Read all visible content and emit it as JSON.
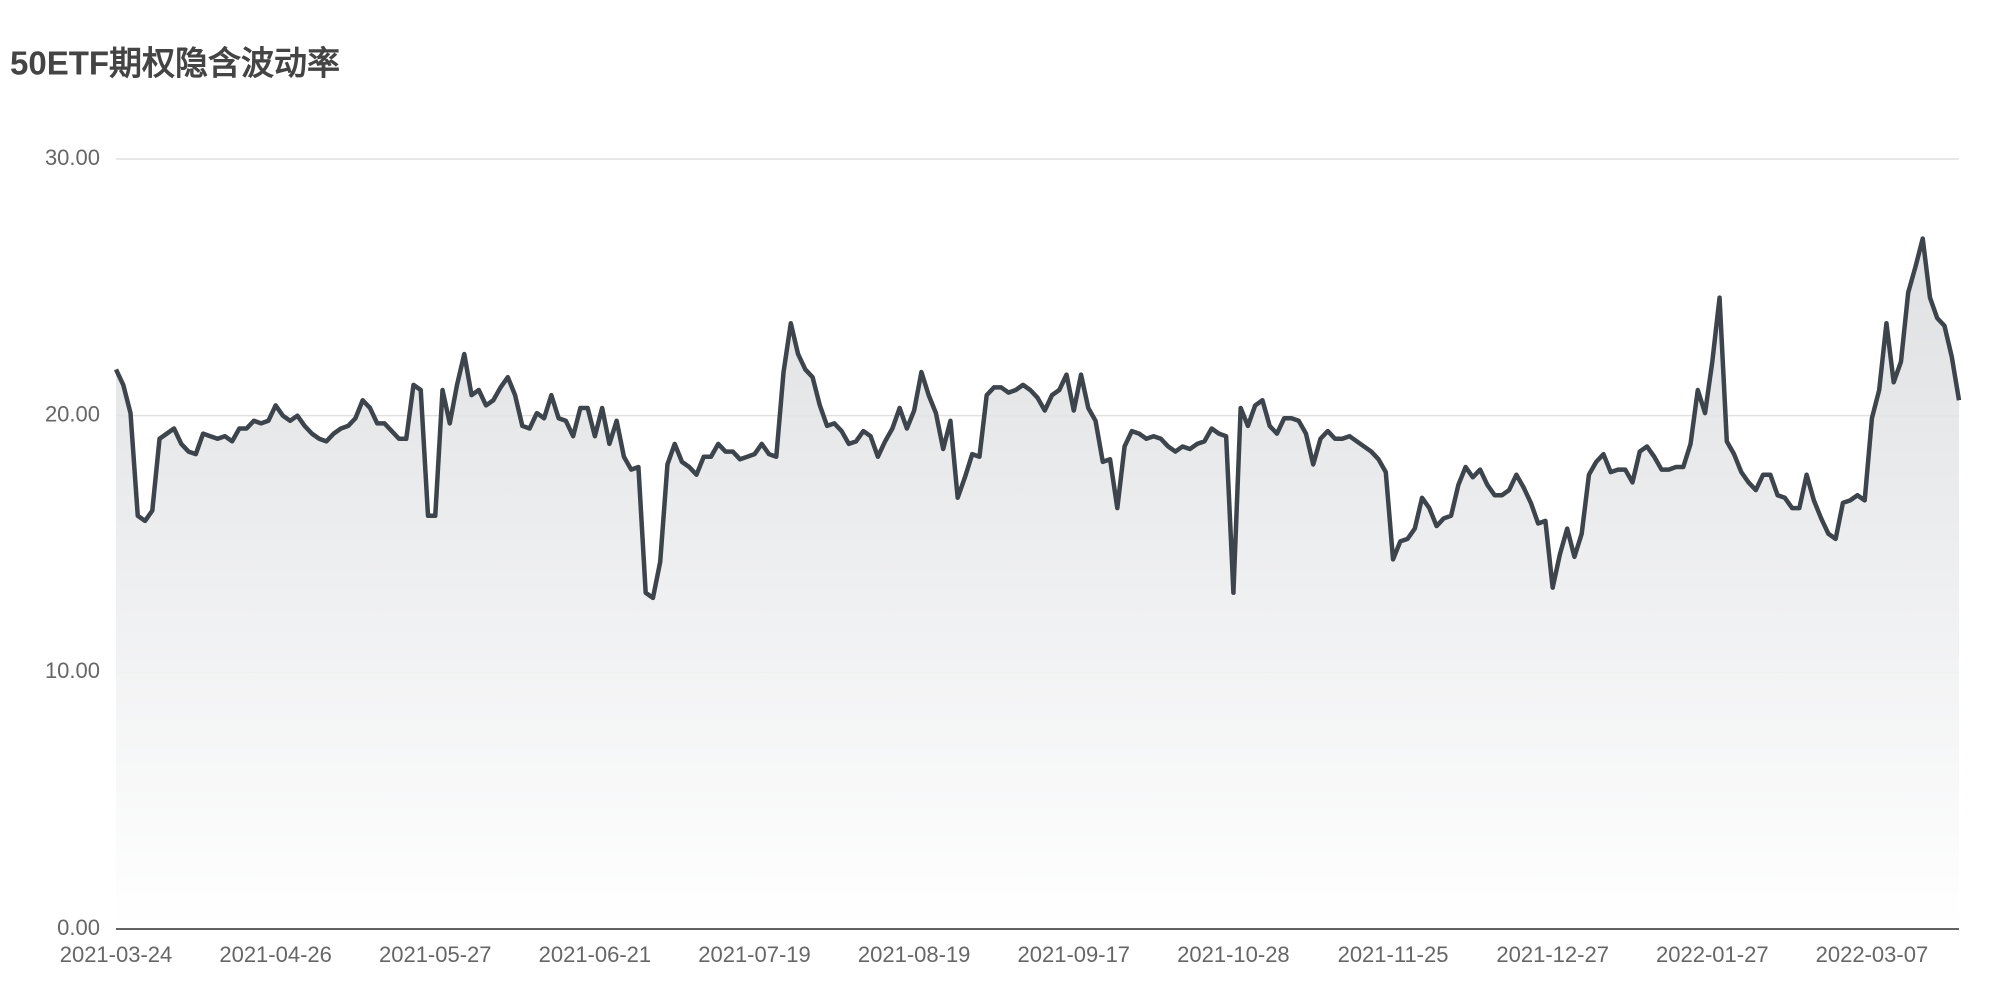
{
  "chart_data": {
    "type": "line",
    "title": "50ETF期权隐含波动率",
    "color": "#3d444c",
    "area": true,
    "grid": true,
    "categories": [
      "2021-03-24",
      null,
      null,
      null,
      null,
      null,
      null,
      null,
      null,
      null,
      null,
      null,
      null,
      null,
      null,
      null,
      null,
      null,
      null,
      null,
      null,
      null,
      "2021-04-26",
      null,
      null,
      null,
      null,
      null,
      null,
      null,
      null,
      null,
      null,
      null,
      null,
      null,
      null,
      null,
      null,
      null,
      null,
      null,
      null,
      null,
      "2021-05-27",
      null,
      null,
      null,
      null,
      null,
      null,
      null,
      null,
      null,
      null,
      null,
      null,
      null,
      null,
      null,
      null,
      null,
      null,
      null,
      null,
      null,
      "2021-06-21",
      null,
      null,
      null,
      null,
      null,
      null,
      null,
      null,
      null,
      null,
      null,
      null,
      null,
      null,
      null,
      null,
      null,
      null,
      null,
      null,
      null,
      "2021-07-19",
      null,
      null,
      null,
      null,
      null,
      null,
      null,
      null,
      null,
      null,
      null,
      null,
      null,
      null,
      null,
      null,
      null,
      null,
      null,
      null,
      null,
      "2021-08-19",
      null,
      null,
      null,
      null,
      null,
      null,
      null,
      null,
      null,
      null,
      null,
      null,
      null,
      null,
      null,
      null,
      null,
      null,
      null,
      null,
      null,
      "2021-09-17",
      null,
      null,
      null,
      null,
      null,
      null,
      null,
      null,
      null,
      null,
      null,
      null,
      null,
      null,
      null,
      null,
      null,
      null,
      null,
      null,
      null,
      "2021-10-28",
      null,
      null,
      null,
      null,
      null,
      null,
      null,
      null,
      null,
      null,
      null,
      null,
      null,
      null,
      null,
      null,
      null,
      null,
      null,
      null,
      null,
      "2021-11-25",
      null,
      null,
      null,
      null,
      null,
      null,
      null,
      null,
      null,
      null,
      null,
      null,
      null,
      null,
      null,
      null,
      null,
      null,
      null,
      null,
      null,
      "2021-12-27",
      null,
      null,
      null,
      null,
      null,
      null,
      null,
      null,
      null,
      null,
      null,
      null,
      null,
      null,
      null,
      null,
      null,
      null,
      null,
      null,
      null,
      "2022-01-27",
      null,
      null,
      null,
      null,
      null,
      null,
      null,
      null,
      null,
      null,
      null,
      null,
      null,
      null,
      null,
      null,
      null,
      null,
      null,
      null,
      null,
      "2022-03-07",
      null,
      null,
      null,
      null,
      null,
      null,
      null,
      null,
      null,
      null,
      null,
      null
    ],
    "values": [
      21.8,
      21.2,
      20.1,
      16.1,
      15.9,
      16.3,
      19.1,
      19.3,
      19.5,
      18.9,
      18.6,
      18.5,
      19.3,
      19.2,
      19.1,
      19.2,
      19.0,
      19.5,
      19.5,
      19.8,
      19.7,
      19.8,
      20.4,
      20.0,
      19.8,
      20.0,
      19.6,
      19.3,
      19.1,
      19.0,
      19.3,
      19.5,
      19.6,
      19.9,
      20.6,
      20.3,
      19.7,
      19.7,
      19.4,
      19.1,
      19.1,
      21.2,
      21.0,
      16.1,
      16.1,
      21.0,
      19.7,
      21.2,
      22.4,
      20.8,
      21.0,
      20.4,
      20.6,
      21.1,
      21.5,
      20.8,
      19.6,
      19.5,
      20.1,
      19.9,
      20.8,
      19.9,
      19.8,
      19.2,
      20.3,
      20.3,
      19.2,
      20.3,
      18.9,
      19.8,
      18.4,
      17.9,
      18.0,
      13.1,
      12.9,
      14.3,
      18.1,
      18.9,
      18.2,
      18.0,
      17.7,
      18.4,
      18.4,
      18.9,
      18.6,
      18.6,
      18.3,
      18.4,
      18.5,
      18.9,
      18.5,
      18.4,
      21.7,
      23.6,
      22.4,
      21.8,
      21.5,
      20.4,
      19.6,
      19.7,
      19.4,
      18.9,
      19.0,
      19.4,
      19.2,
      18.4,
      19.0,
      19.5,
      20.3,
      19.5,
      20.2,
      21.7,
      20.8,
      20.1,
      18.7,
      19.8,
      16.8,
      17.6,
      18.5,
      18.4,
      20.8,
      21.1,
      21.1,
      20.9,
      21.0,
      21.2,
      21.0,
      20.7,
      20.2,
      20.8,
      21.0,
      21.6,
      20.2,
      21.6,
      20.3,
      19.8,
      18.2,
      18.3,
      16.4,
      18.8,
      19.4,
      19.3,
      19.1,
      19.2,
      19.1,
      18.8,
      18.6,
      18.8,
      18.7,
      18.9,
      19.0,
      19.5,
      19.3,
      19.2,
      13.1,
      20.3,
      19.6,
      20.4,
      20.6,
      19.6,
      19.3,
      19.9,
      19.9,
      19.8,
      19.3,
      18.1,
      19.1,
      19.4,
      19.1,
      19.1,
      19.2,
      19.0,
      18.8,
      18.6,
      18.3,
      17.8,
      14.4,
      15.1,
      15.2,
      15.6,
      16.8,
      16.4,
      15.7,
      16.0,
      16.1,
      17.3,
      18.0,
      17.6,
      17.9,
      17.3,
      16.9,
      16.9,
      17.1,
      17.7,
      17.2,
      16.6,
      15.8,
      15.9,
      13.3,
      14.6,
      15.6,
      14.5,
      15.4,
      17.7,
      18.2,
      18.5,
      17.8,
      17.9,
      17.9,
      17.4,
      18.6,
      18.8,
      18.4,
      17.9,
      17.9,
      18.0,
      18.0,
      18.9,
      21.0,
      20.1,
      22.1,
      24.6,
      19.0,
      18.5,
      17.8,
      17.4,
      17.1,
      17.7,
      17.7,
      16.9,
      16.8,
      16.4,
      16.4,
      17.7,
      16.7,
      16.0,
      15.4,
      15.2,
      16.6,
      16.7,
      16.9,
      16.7,
      19.9,
      21.0,
      23.6,
      21.3,
      22.1,
      24.8,
      25.8,
      26.9,
      24.6,
      23.8,
      23.5,
      22.3,
      20.6
    ],
    "ylim": [
      0,
      30
    ],
    "yticks": [
      {
        "value": 0,
        "label": "0.00"
      },
      {
        "value": 10,
        "label": "10.00"
      },
      {
        "value": 20,
        "label": "20.00"
      },
      {
        "value": 30,
        "label": "30.00"
      }
    ]
  }
}
